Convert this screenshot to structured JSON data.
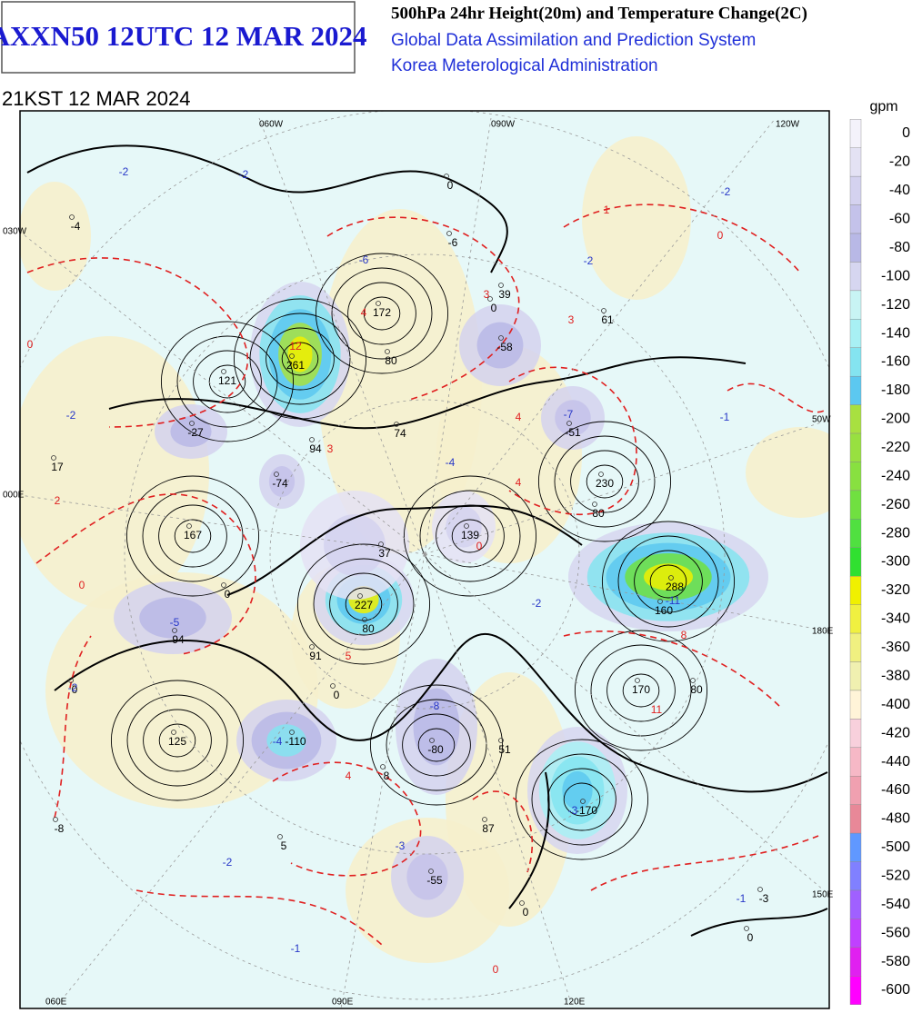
{
  "header": {
    "title": "AXXN50 12UTC 12 MAR 2024",
    "product": "500hPa 24hr Height(20m) and Temperature Change(2C)",
    "system": "Global Data Assimilation and Prediction System",
    "agency": "Korea Meterological Administration",
    "valid_time": "21KST 12 MAR 2024"
  },
  "grid_labels": {
    "top": [
      "060W",
      "090W",
      "120W"
    ],
    "left": [
      "030W",
      "000E"
    ],
    "right": [
      "50W",
      "180E",
      "150E"
    ],
    "bottom": [
      "060E",
      "090E",
      "120E"
    ]
  },
  "legend": {
    "unit": "gpm",
    "levels": [
      0,
      -20,
      -40,
      -60,
      -80,
      -100,
      -120,
      -140,
      -160,
      -180,
      -200,
      -220,
      -240,
      -260,
      -280,
      -300,
      -320,
      -340,
      -360,
      -380,
      -400,
      -420,
      -440,
      -460,
      -480,
      -500,
      -520,
      -540,
      -560,
      -580,
      -600
    ],
    "colors": [
      "#f4f2fb",
      "#e4e2f4",
      "#d4d2ef",
      "#c4c2ea",
      "#b8b8e6",
      "#d6d6f0",
      "#c8f4f4",
      "#a8f0f4",
      "#84e4f0",
      "#5cc8f0",
      "#a8e040",
      "#98e040",
      "#88e040",
      "#70e040",
      "#50e040",
      "#30e030",
      "#f0f000",
      "#f0f040",
      "#f0f080",
      "#f0f0b0",
      "#fff4d8",
      "#f8d0dc",
      "#f6b8c6",
      "#f0a0b0",
      "#e88898",
      "#6098ff",
      "#8080ff",
      "#a060ff",
      "#c040ff",
      "#e020f0",
      "#ff00ff"
    ]
  },
  "map_labels": {
    "height": [
      -4,
      -6,
      39,
      172,
      61,
      -58,
      261,
      121,
      80,
      -27,
      -51,
      74,
      94,
      17,
      -74,
      230,
      80,
      167,
      139,
      37,
      288,
      160,
      227,
      80,
      94,
      91,
      170,
      80,
      125,
      -110,
      -80,
      51,
      8,
      -170,
      87,
      -8,
      5,
      -55,
      -3,
      0,
      0,
      0,
      0,
      0,
      0,
      0
    ],
    "temperature": [
      -2,
      -2,
      -2,
      1,
      -6,
      -2,
      4,
      3,
      3,
      -2,
      -1,
      -7,
      4,
      3,
      -4,
      4,
      2,
      0,
      -2,
      -5,
      -11,
      8,
      5,
      11,
      -2,
      -8,
      -4,
      4,
      -3,
      -3,
      -2,
      -1,
      -1,
      0,
      0,
      0,
      0,
      12
    ]
  }
}
